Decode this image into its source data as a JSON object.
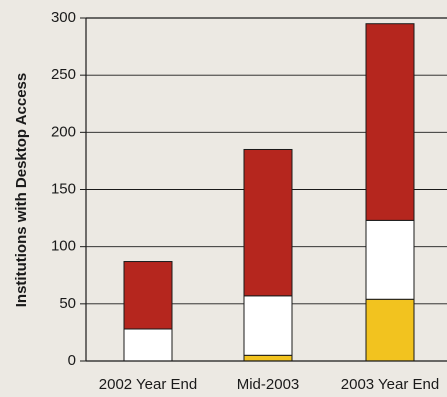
{
  "chart_data": {
    "type": "bar",
    "stacked": true,
    "categories": [
      "2002 Year End",
      "Mid-2003",
      "2003 Year End"
    ],
    "series": [
      {
        "color": "#f2c31f",
        "values": [
          0,
          5,
          54
        ]
      },
      {
        "color": "#ffffff",
        "values": [
          28,
          52,
          69
        ]
      },
      {
        "color": "#b5261e",
        "values": [
          59,
          128,
          172
        ]
      }
    ],
    "ylabel": "Institutions with Desktop Access",
    "ylim": [
      0,
      300
    ],
    "yticks": [
      0,
      50,
      100,
      150,
      200,
      250,
      300
    ],
    "grid": true,
    "legend": "none"
  }
}
